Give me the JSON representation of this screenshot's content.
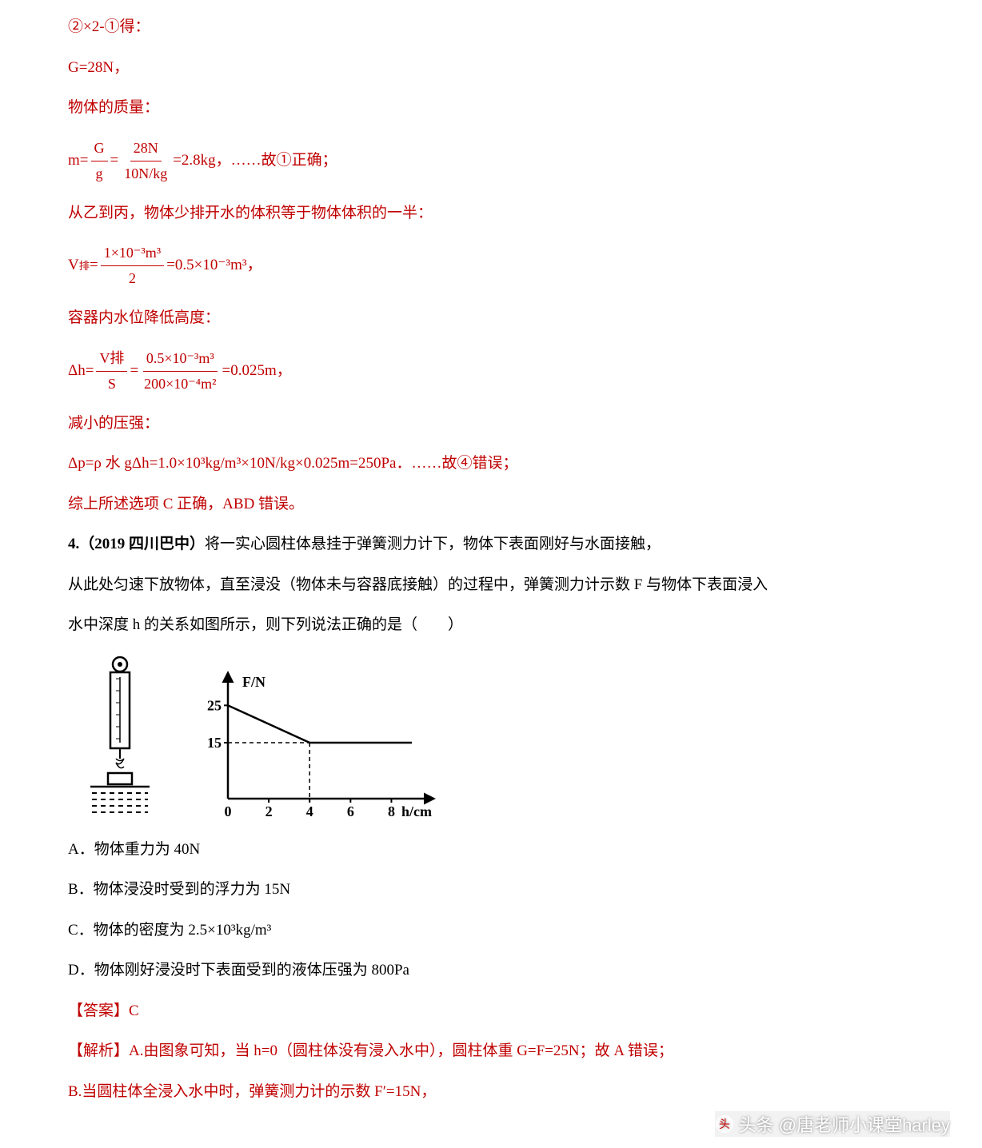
{
  "p1": "②×2-①得：",
  "p2": "G=28N，",
  "p3": "物体的质量：",
  "f1_pre": "m=",
  "f1_n1": "G",
  "f1_d1": "g",
  "f1_mid": "=",
  "f1_n2": "28N",
  "f1_d2": "10N/kg",
  "f1_post": "=2.8kg，……故①正确；",
  "p4": "从乙到丙，物体少排开水的体积等于物体体积的一半：",
  "f2_pre": "V ",
  "f2_sub": "排",
  "f2_eq": "=",
  "f2_n": "1×10⁻³m³",
  "f2_d": "2",
  "f2_post": "=0.5×10⁻³m³，",
  "p5": "容器内水位降低高度：",
  "f3_pre": "Δh=",
  "f3_n1": "V排",
  "f3_d1": "S",
  "f3_mid": "=",
  "f3_n2": "0.5×10⁻³m³",
  "f3_d2": "200×10⁻⁴m²",
  "f3_post": "=0.025m，",
  "p6": "减小的压强：",
  "p7": "Δp=ρ 水 gΔh=1.0×10³kg/m³×10N/kg×0.025m=250Pa．……故④错误；",
  "p8": "综上所述选项 C 正确，ABD 错误。",
  "q_pre": "4.（2019 四川巴中）",
  "q_body1": "将一实心圆柱体悬挂于弹簧测力计下，物体下表面刚好与水面接触，",
  "q_body2": "从此处匀速下放物体，直至浸没（物体未与容器底接触）的过程中，弹簧测力计示数 F 与物体下表面浸入",
  "q_body3": "水中深度 h 的关系如图所示，则下列说法正确的是（　　）",
  "chart": {
    "y_label": "F/N",
    "x_label": "h/cm",
    "y_ticks": [
      "25",
      "15"
    ],
    "x_ticks": [
      "0",
      "2",
      "4",
      "6",
      "8"
    ],
    "line_points": [
      [
        0,
        25
      ],
      [
        4,
        15
      ],
      [
        9,
        15
      ]
    ],
    "dash_x": 4,
    "dash_y": 15,
    "x_max": 9,
    "y_max": 30,
    "stroke": "#000000",
    "stroke_width": 2.5
  },
  "optA": "A．物体重力为 40N",
  "optB": "B．物体浸没时受到的浮力为 15N",
  "optC": "C．物体的密度为 2.5×10³kg/m³",
  "optD": "D．物体刚好浸没时下表面受到的液体压强为 800Pa",
  "ans": "【答案】C",
  "ana_pre": "【解析】",
  "ana1": "A.由图象可知，当 h=0（圆柱体没有浸入水中），圆柱体重 G=F=25N；故 A 错误；",
  "ana2": "B.当圆柱体全浸入水中时，弹簧测力计的示数 F′=15N，",
  "watermark": "头条 @唐老师小课堂harley"
}
